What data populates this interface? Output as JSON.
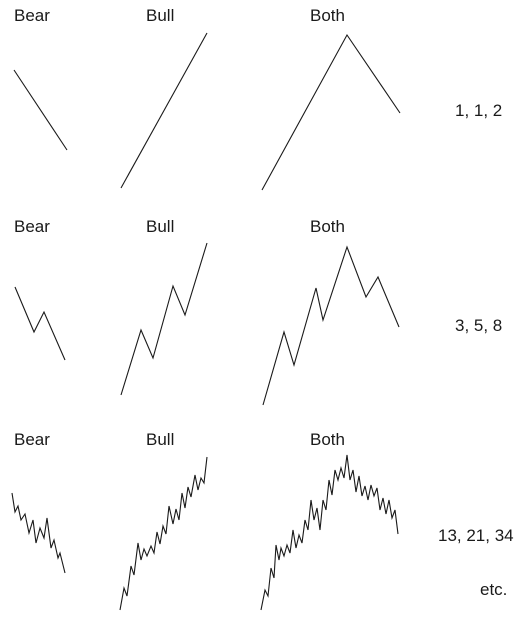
{
  "rows": [
    {
      "labels": [
        "Bear",
        "Bull",
        "Both"
      ],
      "counts": "1, 1, 2"
    },
    {
      "labels": [
        "Bear",
        "Bull",
        "Both"
      ],
      "counts": "3, 5, 8"
    },
    {
      "labels": [
        "Bear",
        "Bull",
        "Both"
      ],
      "counts": "13, 21, 34"
    }
  ],
  "footer": "etc."
}
